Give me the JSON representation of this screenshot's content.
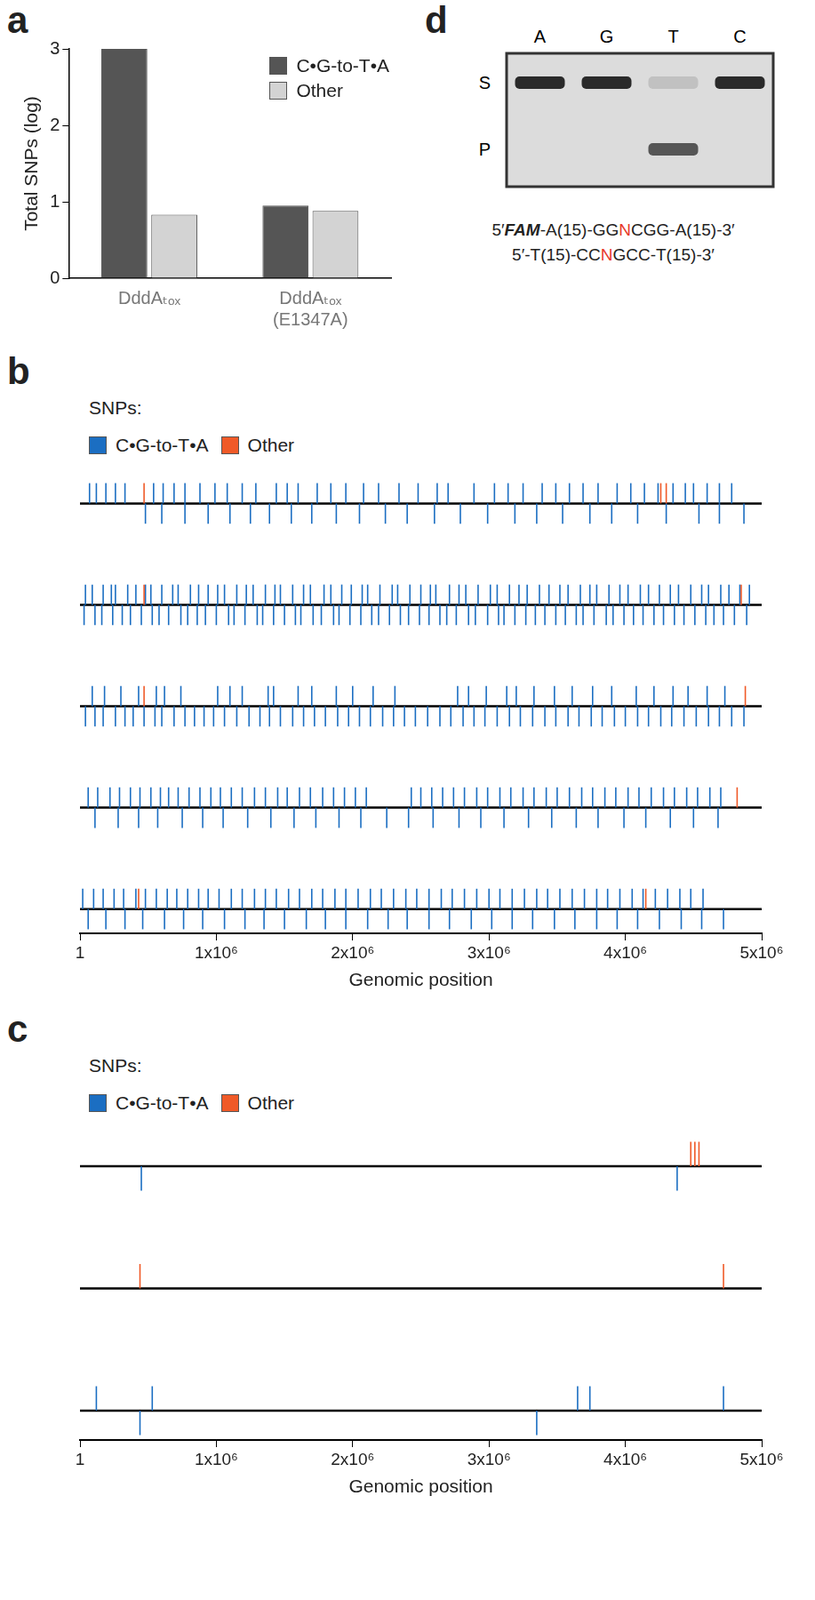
{
  "chart_data": [
    {
      "title": "a",
      "type": "bar",
      "ylabel": "Total SNPs (log)",
      "categories": [
        "DddAₜₒₓ",
        "DddAₜₒₓ (E1347A)"
      ],
      "series": [
        {
          "name": "C•G-to-T•A",
          "color": "#555555",
          "values": [
            3,
            0.95
          ]
        },
        {
          "name": "Other",
          "color": "#d3d3d3",
          "values": [
            0.83,
            0.88
          ]
        }
      ],
      "ylim": [
        0,
        3
      ],
      "yticks": [
        0,
        1,
        2,
        3
      ],
      "grid": false,
      "legend": "top right"
    },
    {
      "title": "b",
      "type": "track",
      "subtitle": "SNPs:",
      "xlabel": "Genomic position",
      "xlim": [
        1,
        5000000
      ],
      "xticks": [
        1,
        {
          "value": 1000000,
          "label": "1x10⁶"
        },
        {
          "value": 2000000,
          "label": "2x10⁶"
        },
        {
          "value": 3000000,
          "label": "3x10⁶"
        },
        {
          "value": 4000000,
          "label": "4x10⁶"
        },
        {
          "value": 5000000,
          "label": "5x10⁶"
        }
      ],
      "grid": false,
      "legend": "top left",
      "series": [
        {
          "name": "C•G-to-T•A",
          "color": "#1b6ec2",
          "values": [
            {
              "upper": [
                70000,
                120000,
                190000,
                260000,
                330000,
                540000,
                610000,
                690000,
                770000,
                880000,
                990000,
                1080000,
                1190000,
                1290000,
                1440000,
                1520000,
                1600000,
                1740000,
                1840000,
                1950000,
                2080000,
                2190000,
                2340000,
                2480000,
                2620000,
                2700000,
                2890000,
                3040000,
                3140000,
                3250000,
                3390000,
                3490000,
                3590000,
                3690000,
                3800000,
                3940000,
                4040000,
                4140000,
                4240000,
                4350000,
                4440000,
                4500000,
                4600000,
                4690000,
                4780000
              ],
              "lower": [
                480000,
                600000,
                770000,
                940000,
                1100000,
                1250000,
                1390000,
                1550000,
                1700000,
                1880000,
                2050000,
                2240000,
                2400000,
                2600000,
                2790000,
                2990000,
                3190000,
                3350000,
                3540000,
                3740000,
                3900000,
                4090000,
                4300000,
                4540000,
                4690000,
                4870000
              ]
            },
            {
              "upper": [
                40000,
                90000,
                170000,
                230000,
                260000,
                350000,
                410000,
                480000,
                520000,
                600000,
                680000,
                720000,
                810000,
                870000,
                940000,
                1010000,
                1060000,
                1150000,
                1220000,
                1270000,
                1360000,
                1430000,
                1470000,
                1560000,
                1640000,
                1690000,
                1790000,
                1840000,
                1920000,
                1990000,
                2070000,
                2110000,
                2200000,
                2290000,
                2330000,
                2420000,
                2500000,
                2570000,
                2610000,
                2710000,
                2780000,
                2830000,
                2920000,
                3010000,
                3060000,
                3150000,
                3220000,
                3280000,
                3370000,
                3440000,
                3520000,
                3580000,
                3670000,
                3740000,
                3790000,
                3880000,
                3960000,
                4020000,
                4110000,
                4170000,
                4250000,
                4330000,
                4390000,
                4480000,
                4560000,
                4610000,
                4700000,
                4760000,
                4840000,
                4910000
              ],
              "lower": [
                30000,
                110000,
                160000,
                240000,
                310000,
                370000,
                450000,
                530000,
                580000,
                650000,
                740000,
                790000,
                860000,
                920000,
                1000000,
                1090000,
                1130000,
                1210000,
                1300000,
                1340000,
                1420000,
                1500000,
                1580000,
                1620000,
                1710000,
                1770000,
                1860000,
                1900000,
                1980000,
                2060000,
                2140000,
                2190000,
                2270000,
                2350000,
                2410000,
                2490000,
                2560000,
                2640000,
                2690000,
                2760000,
                2850000,
                2900000,
                2990000,
                3070000,
                3110000,
                3190000,
                3270000,
                3340000,
                3410000,
                3490000,
                3560000,
                3640000,
                3690000,
                3770000,
                3860000,
                3910000,
                3990000,
                4060000,
                4130000,
                4210000,
                4280000,
                4360000,
                4430000,
                4510000,
                4590000,
                4650000,
                4720000,
                4800000,
                4890000
              ]
            },
            {
              "upper": [
                90000,
                180000,
                300000,
                430000,
                560000,
                620000,
                740000,
                1010000,
                1100000,
                1190000,
                1380000,
                1420000,
                1600000,
                1700000,
                1880000,
                2000000,
                2150000,
                2310000,
                2770000,
                2850000,
                2980000,
                3130000,
                3200000,
                3330000,
                3480000,
                3610000,
                3760000,
                3900000,
                4080000,
                4210000,
                4350000,
                4460000,
                4600000,
                4730000
              ],
              "lower": [
                40000,
                110000,
                170000,
                260000,
                330000,
                390000,
                470000,
                550000,
                600000,
                690000,
                770000,
                840000,
                910000,
                980000,
                1060000,
                1150000,
                1240000,
                1320000,
                1390000,
                1470000,
                1560000,
                1640000,
                1720000,
                1800000,
                1890000,
                1970000,
                2050000,
                2130000,
                2220000,
                2300000,
                2380000,
                2460000,
                2550000,
                2640000,
                2720000,
                2810000,
                2890000,
                2970000,
                3060000,
                3150000,
                3230000,
                3320000,
                3410000,
                3490000,
                3580000,
                3660000,
                3750000,
                3830000,
                3920000,
                4000000,
                4090000,
                4170000,
                4260000,
                4340000,
                4430000,
                4520000,
                4610000,
                4690000,
                4780000,
                4870000
              ]
            },
            {
              "upper": [
                60000,
                130000,
                220000,
                290000,
                370000,
                440000,
                520000,
                590000,
                650000,
                720000,
                800000,
                880000,
                960000,
                1030000,
                1110000,
                1190000,
                1280000,
                1360000,
                1450000,
                1520000,
                1610000,
                1690000,
                1780000,
                1860000,
                1940000,
                2020000,
                2100000,
                2430000,
                2500000,
                2580000,
                2660000,
                2740000,
                2820000,
                2910000,
                2990000,
                3080000,
                3160000,
                3250000,
                3330000,
                3420000,
                3500000,
                3590000,
                3680000,
                3760000,
                3850000,
                3930000,
                4020000,
                4100000,
                4190000,
                4280000,
                4360000,
                4450000,
                4530000,
                4620000,
                4700000
              ],
              "lower": [
                110000,
                280000,
                430000,
                570000,
                750000,
                900000,
                1050000,
                1230000,
                1400000,
                1570000,
                1730000,
                1900000,
                2060000,
                2250000,
                2410000,
                2590000,
                2780000,
                2940000,
                3110000,
                3290000,
                3460000,
                3640000,
                3800000,
                3990000,
                4150000,
                4330000,
                4500000,
                4680000
              ]
            },
            {
              "upper": [
                20000,
                100000,
                170000,
                250000,
                320000,
                410000,
                480000,
                560000,
                640000,
                710000,
                790000,
                870000,
                940000,
                1020000,
                1110000,
                1190000,
                1280000,
                1360000,
                1440000,
                1530000,
                1610000,
                1700000,
                1780000,
                1870000,
                1950000,
                2040000,
                2130000,
                2210000,
                2300000,
                2390000,
                2470000,
                2560000,
                2650000,
                2730000,
                2820000,
                2910000,
                3000000,
                3080000,
                3170000,
                3260000,
                3350000,
                3430000,
                3520000,
                3610000,
                3700000,
                3790000,
                3870000,
                3960000,
                4050000,
                4130000,
                4220000,
                4310000,
                4400000,
                4480000,
                4570000
              ],
              "lower": [
                60000,
                190000,
                330000,
                460000,
                620000,
                760000,
                900000,
                1060000,
                1210000,
                1350000,
                1500000,
                1660000,
                1800000,
                1950000,
                2110000,
                2260000,
                2400000,
                2560000,
                2710000,
                2870000,
                3020000,
                3170000,
                3320000,
                3480000,
                3630000,
                3790000,
                3940000,
                4090000,
                4250000,
                4410000,
                4560000,
                4720000
              ]
            }
          ]
        },
        {
          "name": "Other",
          "color": "#f05a28",
          "values": [
            {
              "upper": [
                470000,
                4260000,
                4300000
              ],
              "lower": []
            },
            {
              "upper": [
                470000,
                4850000
              ],
              "lower": []
            },
            {
              "upper": [
                470000,
                4880000
              ],
              "lower": []
            },
            {
              "upper": [
                4820000
              ],
              "lower": []
            },
            {
              "upper": [
                430000,
                4150000
              ],
              "lower": []
            }
          ]
        }
      ]
    },
    {
      "title": "c",
      "type": "track",
      "subtitle": "SNPs:",
      "xlabel": "Genomic position",
      "xlim": [
        1,
        5000000
      ],
      "xticks": [
        1,
        {
          "value": 1000000,
          "label": "1x10⁶"
        },
        {
          "value": 2000000,
          "label": "2x10⁶"
        },
        {
          "value": 3000000,
          "label": "3x10⁶"
        },
        {
          "value": 4000000,
          "label": "4x10⁶"
        },
        {
          "value": 5000000,
          "label": "5x10⁶"
        }
      ],
      "grid": false,
      "legend": "top left",
      "series": [
        {
          "name": "C•G-to-T•A",
          "color": "#1b6ec2",
          "values": [
            {
              "upper": [],
              "lower": [
                450000,
                4380000
              ]
            },
            {
              "upper": [],
              "lower": []
            },
            {
              "upper": [
                120000,
                530000,
                3650000,
                3740000,
                4720000
              ],
              "lower": [
                440000,
                3350000
              ]
            }
          ]
        },
        {
          "name": "Other",
          "color": "#f05a28",
          "values": [
            {
              "upper": [
                4480000,
                4510000,
                4540000
              ],
              "lower": []
            },
            {
              "upper": [
                440000,
                4720000
              ],
              "lower": []
            },
            {
              "upper": [],
              "lower": []
            }
          ]
        }
      ]
    }
  ],
  "gel": {
    "title": "d",
    "lanes": [
      "A",
      "G",
      "T",
      "C"
    ],
    "bands": [
      {
        "label": "S",
        "intensity": [
          1,
          1,
          0.15,
          1
        ]
      },
      {
        "label": "P",
        "intensity": [
          0,
          0,
          0.75,
          0
        ]
      }
    ],
    "strands": [
      [
        {
          "text": "5′"
        },
        {
          "text": "FAM",
          "emphasis": true
        },
        {
          "text": "-A(15)-GG"
        },
        {
          "text": "N",
          "highlight": true
        },
        {
          "text": "CGG-A(15)-3′"
        }
      ],
      [
        {
          "text": "5′-T(15)-CC"
        },
        {
          "text": "N",
          "highlight": true
        },
        {
          "text": "GCC-T(15)-3′"
        }
      ]
    ]
  }
}
